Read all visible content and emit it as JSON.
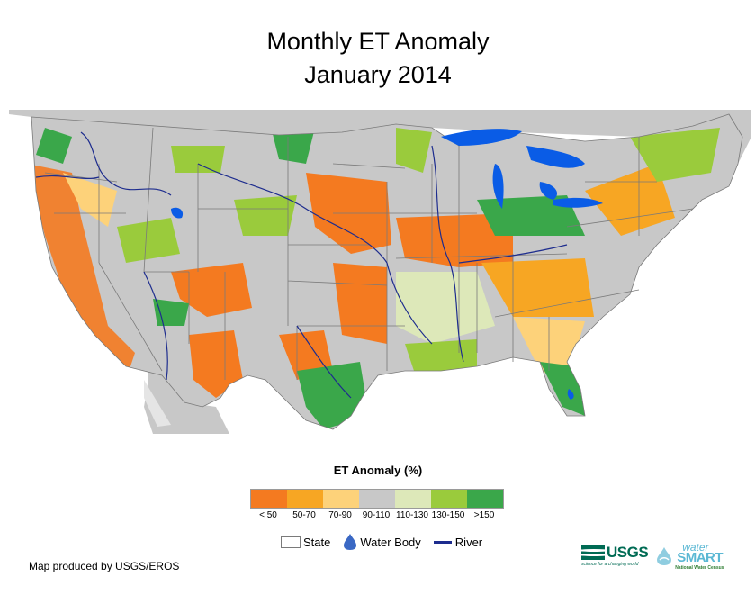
{
  "title": {
    "line1": "Monthly ET Anomaly",
    "line2": "January 2014"
  },
  "legend": {
    "title": "ET Anomaly (%)",
    "classes": [
      {
        "label": "< 50",
        "color": "#f47a20"
      },
      {
        "label": "50-70",
        "color": "#f7a623"
      },
      {
        "label": "70-90",
        "color": "#fdd27a"
      },
      {
        "label": "90-110",
        "color": "#c8c8c8"
      },
      {
        "label": "110-130",
        "color": "#dde8b9"
      },
      {
        "label": "130-150",
        "color": "#9acb3c"
      },
      {
        "label": ">150",
        "color": "#3aa74a"
      }
    ],
    "symbols": {
      "state": "State",
      "water_body": "Water Body",
      "river": "River"
    }
  },
  "colors": {
    "water": "#0a5ce6",
    "river": "#1d2c8e",
    "land": "#c8c8c8",
    "border": "#7a7a7a"
  },
  "footer": {
    "credit": "Map produced by USGS/EROS",
    "usgs_logo": "USGS",
    "usgs_tagline": "science for a changing world",
    "watersmart_top": "water",
    "watersmart_main": "SMART",
    "watersmart_sub": "National Water Census"
  }
}
